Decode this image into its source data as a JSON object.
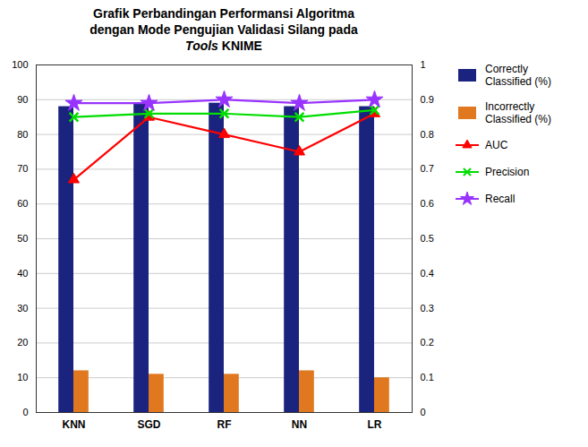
{
  "chart_data": {
    "type": "bar",
    "title": "Grafik Perbandingan Performansi Algoritma\ndengan Mode Pengujian Validasi Silang pada\nTools KNIME",
    "categories": [
      "KNN",
      "SGD",
      "RF",
      "NN",
      "LR"
    ],
    "series": [
      {
        "name": "Correctly\nClassified (%)",
        "type": "bar",
        "color": "#1a237e",
        "values": [
          88,
          89,
          89,
          88,
          88
        ]
      },
      {
        "name": "Incorrectly\nClassified (%)",
        "type": "bar",
        "color": "#e07820",
        "values": [
          12,
          11,
          11,
          12,
          10
        ]
      },
      {
        "name": "AUC",
        "type": "line",
        "axis": "y2",
        "color": "#ff0000",
        "marker": "triangle",
        "values": [
          0.67,
          0.85,
          0.8,
          0.75,
          0.86
        ]
      },
      {
        "name": "Precision",
        "type": "line",
        "axis": "y2",
        "color": "#00dd00",
        "marker": "x",
        "values": [
          0.85,
          0.86,
          0.86,
          0.85,
          0.87
        ]
      },
      {
        "name": "Recall",
        "type": "line",
        "axis": "y2",
        "color": "#9933ff",
        "marker": "star",
        "values": [
          0.89,
          0.89,
          0.9,
          0.89,
          0.9
        ]
      }
    ],
    "ylim": [
      0,
      100
    ],
    "yticks": [
      0,
      10,
      20,
      30,
      40,
      50,
      60,
      70,
      80,
      90,
      100
    ],
    "y2lim": [
      0,
      1
    ],
    "y2ticks": [
      0,
      0.1,
      0.2,
      0.3,
      0.4,
      0.5,
      0.6,
      0.7,
      0.8,
      0.9,
      1
    ],
    "grid": true,
    "legend": "right"
  }
}
